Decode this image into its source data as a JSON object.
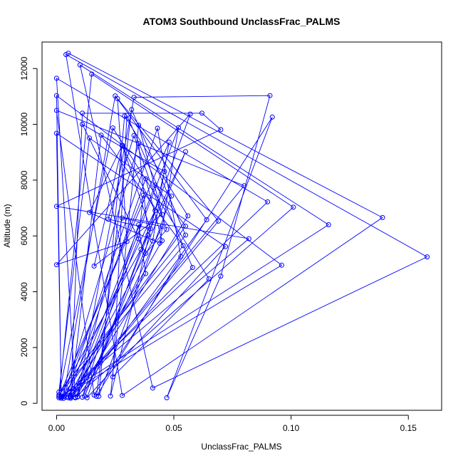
{
  "chart_data": {
    "type": "scatter",
    "title": "ATOM3 Southbound UnclassFrac_PALMS",
    "xlabel": "UnclassFrac_PALMS",
    "ylabel": "Altitude (m)",
    "xlim": [
      -0.0062,
      0.1642
    ],
    "ylim": [
      -250,
      12950
    ],
    "xticks": [
      0.0,
      0.05,
      0.1,
      0.15
    ],
    "xtick_labels": [
      "0.00",
      "0.05",
      "0.10",
      "0.15"
    ],
    "yticks": [
      0,
      2000,
      4000,
      6000,
      8000,
      10000,
      12000
    ],
    "ytick_labels": [
      "0",
      "2000",
      "4000",
      "6000",
      "8000",
      "10000",
      "12000"
    ],
    "grid": false,
    "legend": "none",
    "connected": true,
    "series_color": "#0000ff",
    "series": [
      {
        "values": [
          [
            0.005,
            12550
          ],
          [
            0.139,
            6660
          ],
          [
            0.028,
            280
          ],
          [
            0.004,
            12500
          ],
          [
            0.158,
            5250
          ],
          [
            0.041,
            550
          ],
          [
            0.01,
            12130
          ],
          [
            0.116,
            6400
          ],
          [
            0.001,
            200
          ],
          [
            0.015,
            11800
          ],
          [
            0.101,
            7030
          ],
          [
            0.008,
            220
          ],
          [
            0.0,
            11650
          ],
          [
            0.09,
            7220
          ],
          [
            0.002,
            180
          ],
          [
            0.0,
            11030
          ],
          [
            0.096,
            4950
          ],
          [
            0.003,
            250
          ],
          [
            0.025,
            11020
          ],
          [
            0.064,
            6580
          ],
          [
            0.009,
            230
          ],
          [
            0.033,
            10970
          ],
          [
            0.091,
            11030
          ],
          [
            0.07,
            4560
          ],
          [
            0.047,
            200
          ],
          [
            0.092,
            10260
          ],
          [
            0.016,
            300
          ],
          [
            0.0,
            10500
          ],
          [
            0.08,
            7800
          ],
          [
            0.006,
            220
          ],
          [
            0.011,
            10400
          ],
          [
            0.062,
            10400
          ],
          [
            0.07,
            9810
          ],
          [
            0.0,
            7060
          ],
          [
            0.082,
            5900
          ],
          [
            0.002,
            240
          ],
          [
            0.0,
            9680
          ],
          [
            0.072,
            5620
          ],
          [
            0.013,
            200
          ],
          [
            0.057,
            10370
          ],
          [
            0.0,
            4970
          ],
          [
            0.03,
            5800
          ],
          [
            0.026,
            10920
          ],
          [
            0.069,
            6530
          ],
          [
            0.006,
            180
          ],
          [
            0.019,
            9610
          ],
          [
            0.054,
            5650
          ],
          [
            0.001,
            300
          ],
          [
            0.024,
            9870
          ],
          [
            0.065,
            4460
          ],
          [
            0.024,
            950
          ],
          [
            0.03,
            10320
          ],
          [
            0.058,
            4870
          ],
          [
            0.004,
            220
          ],
          [
            0.043,
            9860
          ],
          [
            0.053,
            5260
          ],
          [
            0.017,
            250
          ],
          [
            0.032,
            10530
          ],
          [
            0.055,
            6030
          ],
          [
            0.001,
            400
          ],
          [
            0.014,
            9510
          ],
          [
            0.049,
            7430
          ],
          [
            0.018,
            250
          ],
          [
            0.029,
            10300
          ],
          [
            0.056,
            6720
          ],
          [
            0.008,
            200
          ],
          [
            0.052,
            9880
          ],
          [
            0.044,
            5740
          ],
          [
            0.014,
            6840
          ],
          [
            0.028,
            9250
          ],
          [
            0.04,
            6260
          ],
          [
            0.022,
            6600
          ],
          [
            0.033,
            9600
          ],
          [
            0.047,
            6230
          ],
          [
            0.038,
            5380
          ],
          [
            0.011,
            10000
          ],
          [
            0.046,
            8310
          ],
          [
            0.023,
            260
          ],
          [
            0.035,
            9970
          ],
          [
            0.045,
            6770
          ],
          [
            0.016,
            4920
          ],
          [
            0.028,
            9220
          ],
          [
            0.042,
            6910
          ],
          [
            0.003,
            180
          ],
          [
            0.035,
            9310
          ],
          [
            0.039,
            6030
          ],
          [
            0.012,
            260
          ],
          [
            0.055,
            9020
          ],
          [
            0.036,
            5520
          ],
          [
            0.001,
            250
          ],
          [
            0.048,
            9360
          ],
          [
            0.041,
            5820
          ],
          [
            0.005,
            200
          ],
          [
            0.038,
            8050
          ],
          [
            0.045,
            5830
          ],
          [
            0.007,
            300
          ],
          [
            0.042,
            7820
          ],
          [
            0.055,
            6350
          ],
          [
            0.002,
            220
          ],
          [
            0.037,
            7460
          ],
          [
            0.035,
            5890
          ],
          [
            0.009,
            240
          ],
          [
            0.028,
            6640
          ],
          [
            0.045,
            6340
          ],
          [
            0.011,
            220
          ],
          [
            0.035,
            6400
          ],
          [
            0.038,
            4650
          ],
          [
            0.006,
            250
          ]
        ]
      }
    ]
  }
}
